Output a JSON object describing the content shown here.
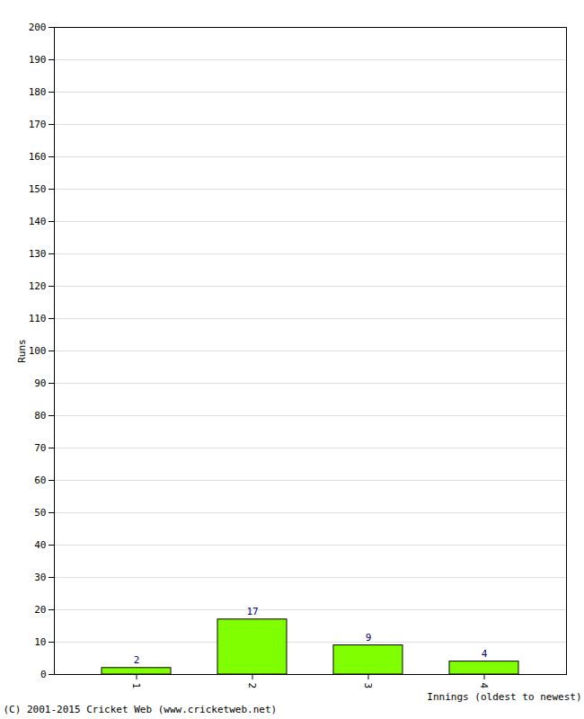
{
  "chart_data": {
    "type": "bar",
    "x_label": "Innings (oldest to newest)",
    "y_label": "Runs",
    "caption": "(C) 2001-2015 Cricket Web (www.cricketweb.net)",
    "categories": [
      "1",
      "2",
      "3",
      "4"
    ],
    "values": [
      2,
      17,
      9,
      4
    ],
    "color": "#80ff00",
    "ylim": [
      0,
      200
    ],
    "yticks": [
      0,
      10,
      20,
      30,
      40,
      50,
      60,
      70,
      80,
      90,
      100,
      110,
      120,
      130,
      140,
      150,
      160,
      170,
      180,
      190,
      200
    ],
    "grid": true,
    "data_labels": true
  }
}
